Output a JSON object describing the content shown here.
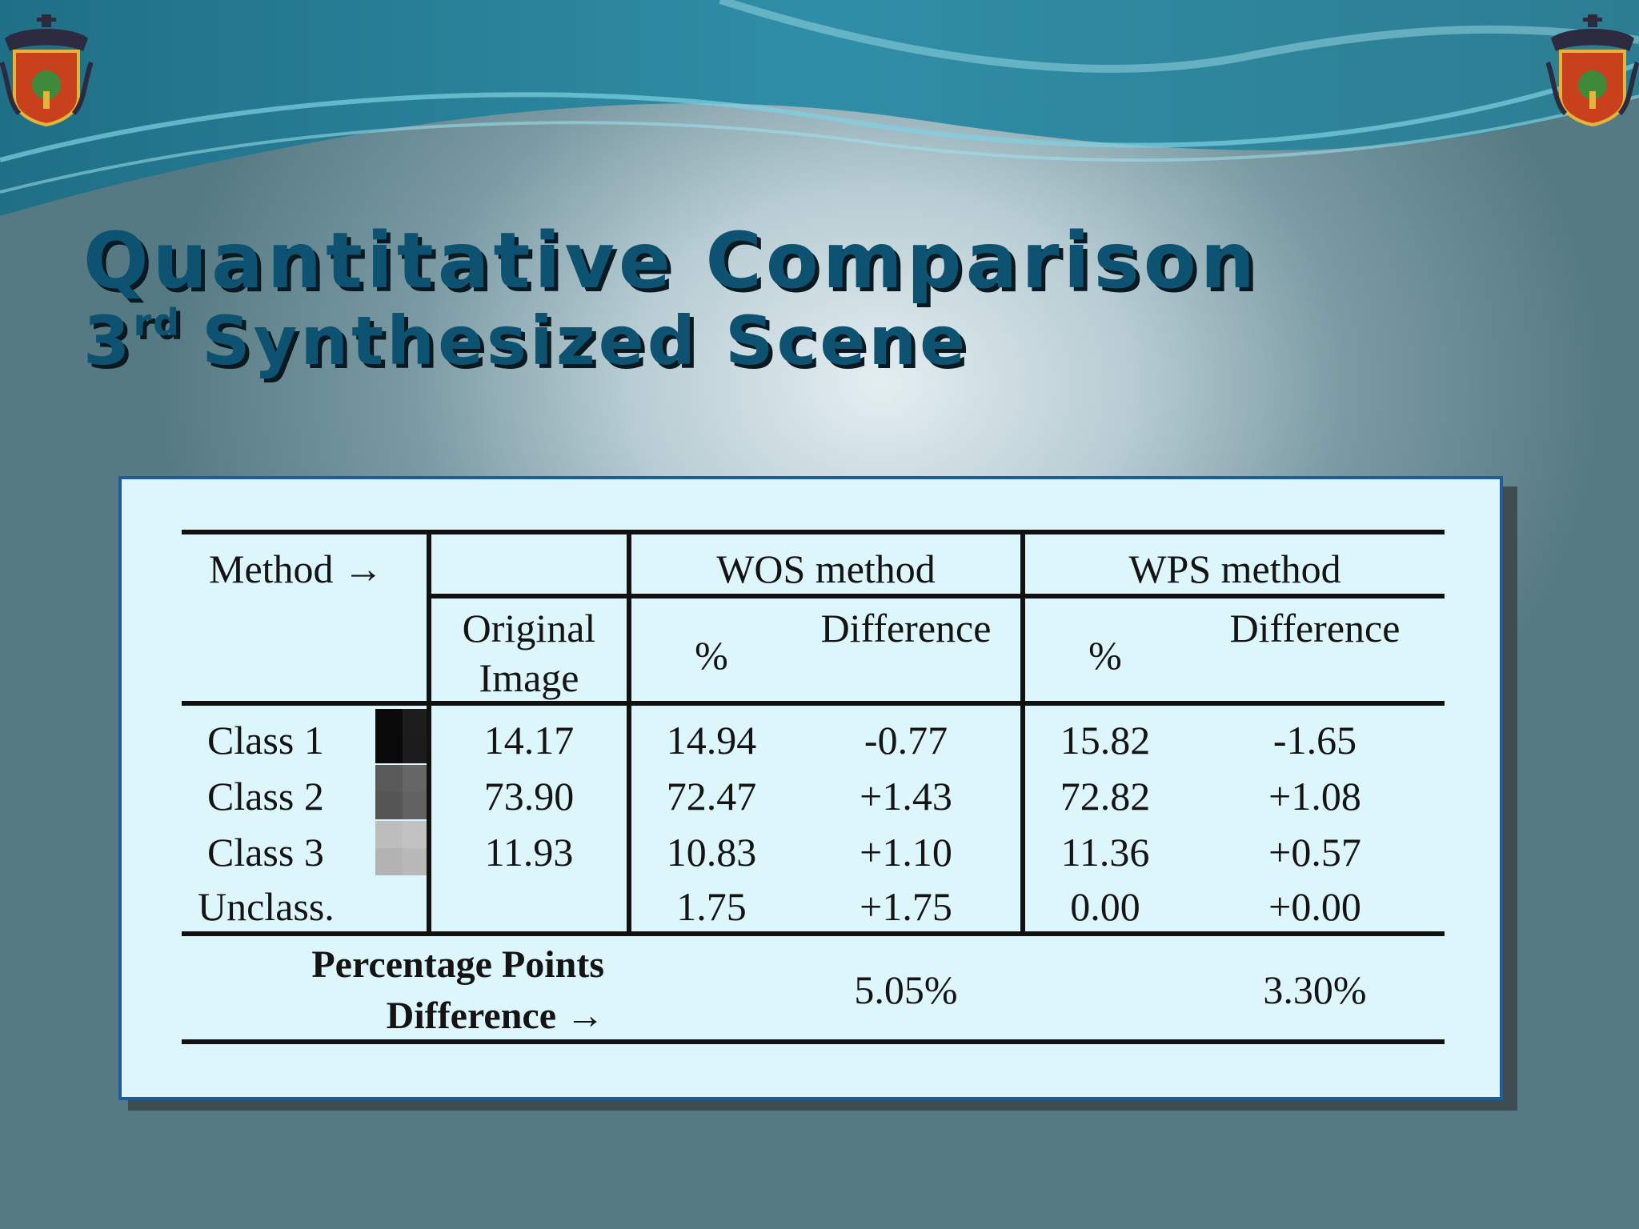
{
  "slide": {
    "title": "Quantitative Comparison",
    "subtitle_ordinal": "3",
    "subtitle_suffix": "rd",
    "subtitle_rest": "Synthesized Scene"
  },
  "table": {
    "header": {
      "method": "Method →",
      "wos": "WOS method",
      "wps": "WPS method",
      "original_line1": "Original",
      "original_line2": "Image",
      "percent": "%",
      "difference": "Difference"
    },
    "rows": [
      {
        "label": "Class 1",
        "swatch": "#0a0a0a",
        "original": "14.17",
        "wos_pct": "14.94",
        "wos_diff": "-0.77",
        "wps_pct": "15.82",
        "wps_diff": "-1.65"
      },
      {
        "label": "Class 2",
        "swatch": "#5a5a5a",
        "original": "73.90",
        "wos_pct": "72.47",
        "wos_diff": "+1.43",
        "wps_pct": "72.82",
        "wps_diff": "+1.08"
      },
      {
        "label": "Class 3",
        "swatch": "#bdbdbd",
        "original": "11.93",
        "wos_pct": "10.83",
        "wos_diff": "+1.10",
        "wps_pct": "11.36",
        "wps_diff": "+0.57"
      },
      {
        "label": "Unclass.",
        "swatch": "",
        "original": "",
        "wos_pct": "1.75",
        "wos_diff": "+1.75",
        "wps_pct": "0.00",
        "wps_diff": "+0.00"
      }
    ],
    "footer": {
      "label_line1": "Percentage Points",
      "label_line2": "Difference →",
      "wos_total": "5.05%",
      "wps_total": "3.30%"
    }
  }
}
